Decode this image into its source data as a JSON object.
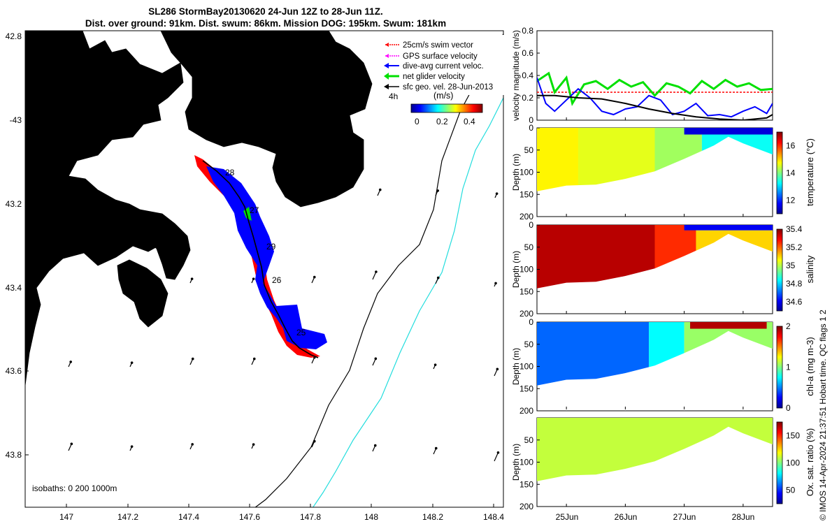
{
  "header": {
    "title_line1": "SL286 StormBay20130620 24-Jun 12Z to 28-Jun 11Z.",
    "title_line2": "Dist. over ground: 91km. Dist. swum: 86km. Mission DOG: 195km. Swum: 181km"
  },
  "footer": {
    "credit": "© IMOS 14-Apr-2024 21:37:51 Hobart time. QC flags 1  2"
  },
  "colors": {
    "land": "#f9c89c",
    "swim_vector": "#ff0000",
    "gps_velocity": "#ff00ff",
    "current": "#0000ff",
    "glider_velocity": "#00e000",
    "geo_velocity": "#000000",
    "isobath_200": "#000000",
    "isobath_1000": "#22dddd"
  },
  "map": {
    "legend": [
      "25cm/s swim vector",
      "GPS surface velocity",
      "dive-avg current veloc.",
      "net glider velocity",
      "sfc geo. vel. 28-Jun-2013"
    ],
    "time_marker": "4h",
    "colorbar": {
      "title": "(m/s)",
      "ticks": [
        "0",
        "0.2",
        "0.4"
      ]
    },
    "isobath_label": "isobaths: 0   200  1000m",
    "lon_ticks": [
      "147",
      "147.2",
      "147.4",
      "147.6",
      "147.8",
      "148",
      "148.2",
      "148.4"
    ],
    "lat_ticks": [
      "42.8",
      "-43",
      "43.2",
      "43.4",
      "43.6",
      "43.8"
    ],
    "day_labels": [
      "28",
      "27",
      "29",
      "26",
      "25"
    ]
  },
  "chart_data": [
    {
      "type": "line",
      "ylabel": "velocity magnitude (m/s)",
      "ylim": [
        0,
        0.8
      ],
      "yticks": [
        "0",
        "0.2",
        "0.4",
        "0.6",
        "0.8"
      ],
      "x_range_days": [
        24.5,
        28.5
      ],
      "series": [
        {
          "name": "swim vector",
          "color": "#ff0000",
          "x": [
            24.5,
            28.5
          ],
          "values": [
            0.25,
            0.25
          ]
        },
        {
          "name": "net glider velocity",
          "color": "#00e000",
          "x": [
            24.5,
            24.7,
            24.8,
            25.0,
            25.1,
            25.3,
            25.5,
            25.7,
            25.9,
            26.1,
            26.3,
            26.5,
            26.7,
            26.9,
            27.1,
            27.3,
            27.5,
            27.7,
            27.9,
            28.1,
            28.3,
            28.5
          ],
          "values": [
            0.35,
            0.42,
            0.25,
            0.38,
            0.15,
            0.32,
            0.35,
            0.28,
            0.36,
            0.3,
            0.34,
            0.22,
            0.33,
            0.3,
            0.24,
            0.35,
            0.28,
            0.36,
            0.3,
            0.33,
            0.27,
            0.28
          ]
        },
        {
          "name": "dive-avg current",
          "color": "#0000ff",
          "x": [
            24.5,
            24.65,
            24.8,
            25.0,
            25.2,
            25.4,
            25.6,
            25.8,
            26.0,
            26.2,
            26.4,
            26.6,
            26.8,
            27.0,
            27.2,
            27.4,
            27.6,
            27.8,
            28.0,
            28.2,
            28.4,
            28.5
          ],
          "values": [
            0.38,
            0.15,
            0.08,
            0.18,
            0.28,
            0.2,
            0.08,
            0.05,
            0.1,
            0.12,
            0.22,
            0.18,
            0.05,
            0.08,
            0.15,
            0.04,
            0.05,
            0.03,
            0.08,
            0.12,
            0.06,
            0.15
          ]
        },
        {
          "name": "sfc geo. vel.",
          "color": "#000000",
          "x": [
            24.5,
            24.8,
            25.2,
            25.6,
            26.0,
            26.4,
            26.8,
            27.2,
            27.6,
            28.0,
            28.4,
            28.5
          ],
          "values": [
            0.22,
            0.22,
            0.2,
            0.19,
            0.15,
            0.1,
            0.06,
            0.03,
            0.01,
            0.0,
            0.02,
            0.05
          ]
        }
      ]
    },
    {
      "type": "heatmap",
      "variable": "temperature",
      "ylabel": "Depth (m)",
      "ylim": [
        200,
        0
      ],
      "yticks": [
        "0",
        "50",
        "100",
        "150",
        "200"
      ],
      "colorbar_label": "temperature (°C)",
      "colorbar_ticks": [
        "12",
        "14",
        "16"
      ],
      "clim": [
        11,
        17
      ],
      "bottom_depth": {
        "x": [
          24.5,
          25.0,
          25.5,
          26.0,
          26.5,
          27.0,
          27.5,
          27.75,
          28.0,
          28.5
        ],
        "values": [
          143,
          130,
          128,
          115,
          98,
          70,
          40,
          20,
          35,
          60
        ]
      },
      "bands": [
        {
          "x_start": 24.5,
          "x_end": 25.2,
          "value": 14.8,
          "depth_top": 0,
          "depth_bottom": 200
        },
        {
          "x_start": 25.2,
          "x_end": 26.5,
          "value": 14.6,
          "depth_top": 0,
          "depth_bottom": 200
        },
        {
          "x_start": 26.5,
          "x_end": 27.3,
          "value": 14.2,
          "depth_top": 0,
          "depth_bottom": 200
        },
        {
          "x_start": 27.3,
          "x_end": 28.5,
          "value": 13.3,
          "depth_top": 15,
          "depth_bottom": 200
        },
        {
          "x_start": 27.0,
          "x_end": 28.5,
          "value": 11.5,
          "depth_top": 0,
          "depth_bottom": 15
        }
      ]
    },
    {
      "type": "heatmap",
      "variable": "salinity",
      "ylabel": "Depth (m)",
      "ylim": [
        200,
        0
      ],
      "yticks": [
        "0",
        "50",
        "100",
        "150",
        "200"
      ],
      "colorbar_label": "salinity",
      "colorbar_ticks": [
        "34.6",
        "34.8",
        "35",
        "35.2",
        "35.4"
      ],
      "clim": [
        34.5,
        35.4
      ],
      "bottom_depth": {
        "x": [
          24.5,
          25.0,
          25.5,
          26.0,
          26.5,
          27.0,
          27.5,
          27.75,
          28.0,
          28.5
        ],
        "values": [
          143,
          130,
          128,
          115,
          98,
          70,
          40,
          20,
          35,
          60
        ]
      },
      "bands": [
        {
          "x_start": 24.5,
          "x_end": 26.5,
          "value": 35.35,
          "depth_top": 0,
          "depth_bottom": 200
        },
        {
          "x_start": 26.5,
          "x_end": 27.2,
          "value": 35.25,
          "depth_top": 0,
          "depth_bottom": 200
        },
        {
          "x_start": 27.2,
          "x_end": 28.5,
          "value": 35.1,
          "depth_top": 12,
          "depth_bottom": 200
        },
        {
          "x_start": 27.0,
          "x_end": 28.5,
          "value": 34.6,
          "depth_top": 0,
          "depth_bottom": 12
        }
      ]
    },
    {
      "type": "heatmap",
      "variable": "chl-a",
      "ylabel": "Depth (m)",
      "ylim": [
        200,
        0
      ],
      "yticks": [
        "0",
        "50",
        "100",
        "150",
        "200"
      ],
      "colorbar_label": "chl-a (mg m-3)",
      "colorbar_ticks": [
        "0",
        "1",
        "2"
      ],
      "clim": [
        0,
        2
      ],
      "bottom_depth": {
        "x": [
          24.5,
          25.0,
          25.5,
          26.0,
          26.5,
          27.0,
          27.5,
          27.75,
          28.0,
          28.5
        ],
        "values": [
          143,
          130,
          128,
          115,
          98,
          70,
          40,
          20,
          35,
          60
        ]
      },
      "bands": [
        {
          "x_start": 24.5,
          "x_end": 26.4,
          "value": 0.45,
          "depth_top": 0,
          "depth_bottom": 200
        },
        {
          "x_start": 26.4,
          "x_end": 27.0,
          "value": 0.75,
          "depth_top": 0,
          "depth_bottom": 200
        },
        {
          "x_start": 27.0,
          "x_end": 28.5,
          "value": 1.05,
          "depth_top": 0,
          "depth_bottom": 200
        },
        {
          "x_start": 27.1,
          "x_end": 28.4,
          "value": 1.9,
          "depth_top": 0,
          "depth_bottom": 15
        }
      ]
    },
    {
      "type": "heatmap",
      "variable": "oxygen saturation",
      "ylabel": "Depth (m)",
      "ylim": [
        200,
        0
      ],
      "yticks": [
        "50",
        "100",
        "150",
        "200"
      ],
      "colorbar_label": "Ox. sat. ratio (%)",
      "colorbar_ticks": [
        "50",
        "100",
        "150"
      ],
      "clim": [
        25,
        175
      ],
      "bottom_depth": {
        "x": [
          24.5,
          25.0,
          25.5,
          26.0,
          26.5,
          27.0,
          27.5,
          27.75,
          28.0,
          28.5
        ],
        "values": [
          143,
          130,
          128,
          115,
          98,
          70,
          40,
          20,
          35,
          60
        ]
      },
      "bands": [
        {
          "x_start": 24.5,
          "x_end": 28.5,
          "value": 110,
          "depth_top": 0,
          "depth_bottom": 200
        }
      ]
    }
  ],
  "time_axis": {
    "labels": [
      "25Jun",
      "26Jun",
      "27Jun",
      "28Jun"
    ]
  }
}
